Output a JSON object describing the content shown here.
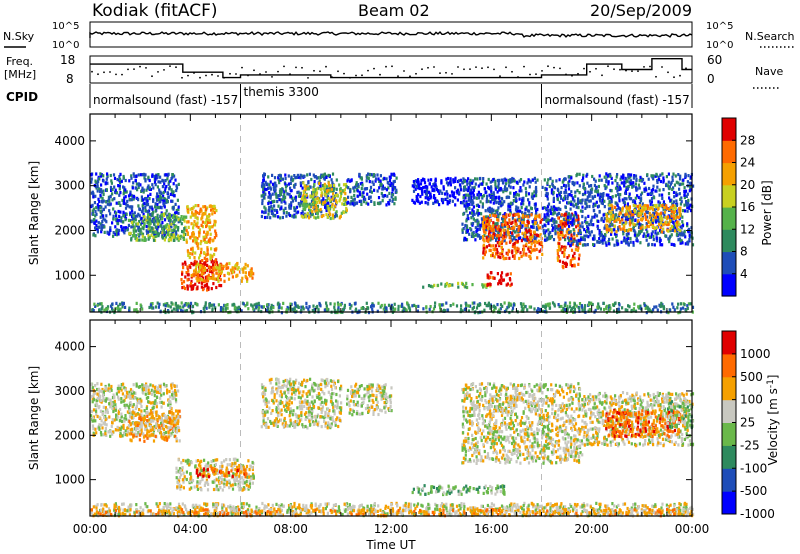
{
  "header": {
    "station": "Kodiak (fitACF)",
    "beam": "Beam 02",
    "date": "20/Sep/2009"
  },
  "status_panels": {
    "nsky_label": "N.Sky",
    "nsky_ticks": [
      "10^5",
      "10^0"
    ],
    "nsearch_label": "N.Search",
    "nsearch_ticks": [
      "10^5",
      "10^0"
    ],
    "freq_label_1": "Freq.",
    "freq_label_2": "[MHz]",
    "freq_ticks": [
      "18",
      "8"
    ],
    "nave_label": "Nave",
    "nave_ticks": [
      "60",
      "0"
    ],
    "cpid_label": "CPID",
    "cpid_segments": [
      {
        "label": "normalsound (fast) -157",
        "start_hour": 0,
        "end_hour": 6
      },
      {
        "label": "themis 3300",
        "start_hour": 6,
        "end_hour": 18
      },
      {
        "label": "normalsound (fast) -157",
        "start_hour": 18,
        "end_hour": 24
      }
    ],
    "freq_steps": [
      [
        0,
        15
      ],
      [
        3.7,
        12
      ],
      [
        5.3,
        10
      ],
      [
        6,
        11
      ],
      [
        9.6,
        10
      ],
      [
        12,
        10
      ],
      [
        15.5,
        10
      ],
      [
        18,
        11
      ],
      [
        19.8,
        15
      ],
      [
        21.2,
        13
      ],
      [
        22.4,
        17
      ],
      [
        23.6,
        13
      ]
    ]
  },
  "chart_data": [
    {
      "type": "heatmap",
      "name": "power_panel",
      "xlabel": "",
      "ylabel": "Slant Range [km]",
      "xlim": [
        0,
        24
      ],
      "ylim": [
        180,
        4600
      ],
      "yticks": [
        1000,
        2000,
        3000,
        4000
      ],
      "colorbar": {
        "label": "Power [dB]",
        "ticks": [
          "4",
          "8",
          "12",
          "16",
          "20",
          "24",
          "28"
        ],
        "range": [
          0,
          30
        ],
        "colors": [
          "#0000ff",
          "#1e4db8",
          "#2e8a5e",
          "#55b24a",
          "#c8d020",
          "#f5a000",
          "#ff6a00",
          "#e00000"
        ]
      },
      "scatter_regions": [
        {
          "hours": [
            0,
            3.5
          ],
          "ranges": [
            1900,
            3300
          ],
          "level": 1
        },
        {
          "hours": [
            1.5,
            3.8
          ],
          "ranges": [
            1800,
            2400
          ],
          "level": 3
        },
        {
          "hours": [
            3.6,
            5.2
          ],
          "ranges": [
            700,
            1400
          ],
          "level": 7
        },
        {
          "hours": [
            4.0,
            6.5
          ],
          "ranges": [
            900,
            1300
          ],
          "level": 5
        },
        {
          "hours": [
            3.8,
            5.0
          ],
          "ranges": [
            1400,
            2600
          ],
          "level": 5
        },
        {
          "hours": [
            6.8,
            9.8
          ],
          "ranges": [
            2300,
            3300
          ],
          "level": 1
        },
        {
          "hours": [
            8.4,
            10.2
          ],
          "ranges": [
            2300,
            3100
          ],
          "level": 4
        },
        {
          "hours": [
            10.2,
            12.2
          ],
          "ranges": [
            2600,
            3300
          ],
          "level": 1
        },
        {
          "hours": [
            12.8,
            15.3
          ],
          "ranges": [
            2600,
            3200
          ],
          "level": 0
        },
        {
          "hours": [
            14.8,
            17.8
          ],
          "ranges": [
            1800,
            3200
          ],
          "level": 1
        },
        {
          "hours": [
            15.6,
            18.0
          ],
          "ranges": [
            1400,
            2400
          ],
          "level": 6
        },
        {
          "hours": [
            13.2,
            16.0
          ],
          "ranges": [
            760,
            860
          ],
          "level": 3
        },
        {
          "hours": [
            15.8,
            16.8
          ],
          "ranges": [
            800,
            1100
          ],
          "level": 7
        },
        {
          "hours": [
            18.0,
            19.0
          ],
          "ranges": [
            1800,
            3200
          ],
          "level": 1
        },
        {
          "hours": [
            18.6,
            19.5
          ],
          "ranges": [
            1200,
            2400
          ],
          "level": 6
        },
        {
          "hours": [
            19.0,
            24.0
          ],
          "ranges": [
            1700,
            3300
          ],
          "level": 1
        },
        {
          "hours": [
            20.5,
            23.5
          ],
          "ranges": [
            2000,
            2600
          ],
          "level": 5
        },
        {
          "hours": [
            0,
            24
          ],
          "ranges": [
            200,
            420
          ],
          "level": 2
        }
      ]
    },
    {
      "type": "heatmap",
      "name": "velocity_panel",
      "xlabel": "Time UT",
      "ylabel": "Slant Range [km]",
      "xlim": [
        0,
        24
      ],
      "ylim": [
        180,
        4600
      ],
      "yticks": [
        1000,
        2000,
        3000,
        4000
      ],
      "xticks": [
        "00:00",
        "04:00",
        "08:00",
        "12:00",
        "16:00",
        "20:00",
        "00:00"
      ],
      "colorbar": {
        "label": "Velocity [m s-1]",
        "ticks": [
          "1000",
          "500",
          "100",
          "25",
          "-25",
          "-100",
          "-500",
          "-1000"
        ],
        "range": [
          -1000,
          1000
        ],
        "colors": [
          "#0000ff",
          "#1e4db8",
          "#2e8a5e",
          "#6ab84a",
          "#c8c8c0",
          "#f5a000",
          "#ff6a00",
          "#e00000"
        ]
      },
      "scatter_regions": [
        {
          "hours": [
            0,
            3.5
          ],
          "ranges": [
            2000,
            3200
          ],
          "level": 4
        },
        {
          "hours": [
            1.5,
            3.6
          ],
          "ranges": [
            1900,
            2600
          ],
          "level": 5
        },
        {
          "hours": [
            3.4,
            6.5
          ],
          "ranges": [
            800,
            1500
          ],
          "level": 4
        },
        {
          "hours": [
            4.2,
            6.2
          ],
          "ranges": [
            1100,
            1300
          ],
          "level": 6
        },
        {
          "hours": [
            6.8,
            10.0
          ],
          "ranges": [
            2200,
            3300
          ],
          "level": 4
        },
        {
          "hours": [
            10.2,
            12.0
          ],
          "ranges": [
            2500,
            3200
          ],
          "level": 4
        },
        {
          "hours": [
            14.8,
            18.0
          ],
          "ranges": [
            1400,
            3200
          ],
          "level": 4
        },
        {
          "hours": [
            12.8,
            16.5
          ],
          "ranges": [
            700,
            900
          ],
          "level": 3
        },
        {
          "hours": [
            18.0,
            19.6
          ],
          "ranges": [
            1400,
            3200
          ],
          "level": 4
        },
        {
          "hours": [
            19.6,
            24.0
          ],
          "ranges": [
            1800,
            3000
          ],
          "level": 4
        },
        {
          "hours": [
            20.5,
            23.5
          ],
          "ranges": [
            2000,
            2600
          ],
          "level": 6
        },
        {
          "hours": [
            23.0,
            24.0
          ],
          "ranges": [
            2200,
            2800
          ],
          "level": 3
        },
        {
          "hours": [
            0,
            24
          ],
          "ranges": [
            220,
            500
          ],
          "level": 4
        },
        {
          "hours": [
            0,
            24
          ],
          "ranges": [
            220,
            360
          ],
          "level": 5
        }
      ]
    }
  ]
}
